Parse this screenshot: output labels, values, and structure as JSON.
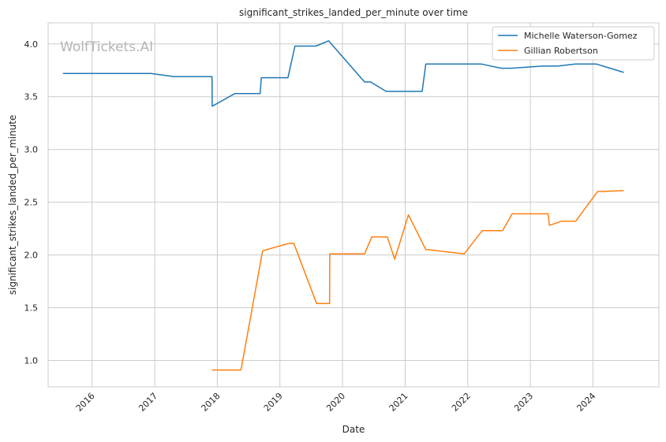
{
  "chart_data": {
    "type": "line",
    "title": "significant_strikes_landed_per_minute over time",
    "xlabel": "Date",
    "ylabel": "significant_strikes_landed_per_minute",
    "watermark": "WolfTickets.AI",
    "xlim": [
      "2015-04-20",
      "2025-01-20"
    ],
    "ylim": [
      0.75,
      4.2
    ],
    "x_ticks": [
      {
        "date": "2016-01-01",
        "label": "2016"
      },
      {
        "date": "2017-01-01",
        "label": "2017"
      },
      {
        "date": "2018-01-01",
        "label": "2018"
      },
      {
        "date": "2019-01-01",
        "label": "2019"
      },
      {
        "date": "2020-01-01",
        "label": "2020"
      },
      {
        "date": "2021-01-01",
        "label": "2021"
      },
      {
        "date": "2022-01-01",
        "label": "2022"
      },
      {
        "date": "2023-01-01",
        "label": "2023"
      },
      {
        "date": "2024-01-01",
        "label": "2024"
      }
    ],
    "y_ticks": [
      1.0,
      1.5,
      2.0,
      2.5,
      3.0,
      3.5,
      4.0
    ],
    "y_tick_labels": [
      "1.0",
      "1.5",
      "2.0",
      "2.5",
      "3.0",
      "3.5",
      "4.0"
    ],
    "grid": true,
    "legend_position": "top-right",
    "series": [
      {
        "name": "Michelle Waterson-Gomez",
        "color": "#1f77b4",
        "points": [
          [
            "2015-07-15",
            3.72
          ],
          [
            "2016-12-10",
            3.72
          ],
          [
            "2017-04-22",
            3.69
          ],
          [
            "2017-12-01",
            3.69
          ],
          [
            "2017-12-02",
            3.41
          ],
          [
            "2018-04-14",
            3.53
          ],
          [
            "2018-09-08",
            3.53
          ],
          [
            "2018-09-15",
            3.68
          ],
          [
            "2019-02-17",
            3.68
          ],
          [
            "2019-03-30",
            3.98
          ],
          [
            "2019-07-30",
            3.98
          ],
          [
            "2019-10-12",
            4.03
          ],
          [
            "2020-05-09",
            3.64
          ],
          [
            "2020-06-13",
            3.64
          ],
          [
            "2020-09-12",
            3.55
          ],
          [
            "2021-04-10",
            3.55
          ],
          [
            "2021-05-01",
            3.81
          ],
          [
            "2022-03-19",
            3.81
          ],
          [
            "2022-07-16",
            3.77
          ],
          [
            "2022-09-10",
            3.77
          ],
          [
            "2023-03-11",
            3.79
          ],
          [
            "2023-06-10",
            3.79
          ],
          [
            "2023-09-20",
            3.81
          ],
          [
            "2024-01-20",
            3.81
          ],
          [
            "2024-06-29",
            3.73
          ]
        ]
      },
      {
        "name": "Gillian Robertson",
        "color": "#ff7f0e",
        "points": [
          [
            "2017-12-01",
            0.91
          ],
          [
            "2018-05-19",
            0.91
          ],
          [
            "2018-09-22",
            2.04
          ],
          [
            "2019-02-23",
            2.11
          ],
          [
            "2019-03-23",
            2.11
          ],
          [
            "2019-08-03",
            1.54
          ],
          [
            "2019-10-18",
            1.54
          ],
          [
            "2019-10-19",
            2.01
          ],
          [
            "2020-05-09",
            2.01
          ],
          [
            "2020-06-20",
            2.17
          ],
          [
            "2020-09-19",
            2.17
          ],
          [
            "2020-11-01",
            1.96
          ],
          [
            "2021-01-20",
            2.38
          ],
          [
            "2021-05-01",
            2.05
          ],
          [
            "2021-05-15",
            2.05
          ],
          [
            "2021-12-11",
            2.01
          ],
          [
            "2022-03-26",
            2.23
          ],
          [
            "2022-07-23",
            2.23
          ],
          [
            "2022-09-17",
            2.39
          ],
          [
            "2023-04-15",
            2.39
          ],
          [
            "2023-04-22",
            2.28
          ],
          [
            "2023-07-01",
            2.32
          ],
          [
            "2023-09-23",
            2.32
          ],
          [
            "2024-01-27",
            2.6
          ],
          [
            "2024-06-29",
            2.61
          ]
        ]
      }
    ]
  }
}
